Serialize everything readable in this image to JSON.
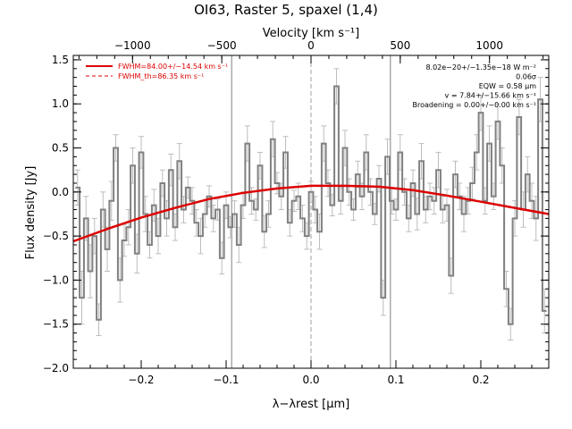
{
  "chart_data": {
    "type": "line",
    "title": "OI63, Raster 5, spaxel (1,4)",
    "xlabel": "λ−λrest [μm]",
    "ylabel": "Flux density [Jy]",
    "top_axis_label": "Velocity [km s⁻¹]",
    "xlim": [
      -0.28,
      0.28
    ],
    "ylim": [
      -2.0,
      1.55
    ],
    "x_ticks": [
      -0.2,
      -0.1,
      0.0,
      0.1,
      0.2
    ],
    "x_tick_labels": [
      "−0.2",
      "−0.1",
      "0.0",
      "0.1",
      "0.2"
    ],
    "y_ticks": [
      -2.0,
      -1.5,
      -1.0,
      -0.5,
      0.0,
      0.5,
      1.0,
      1.5
    ],
    "y_tick_labels": [
      "−2.0",
      "−1.5",
      "−1.0",
      "−0.5",
      "0.0",
      "0.5",
      "1.0",
      "1.5"
    ],
    "top_ticks": [
      -1000,
      -500,
      0,
      500,
      1000
    ],
    "top_tick_labels": [
      "−1000",
      "−500",
      "0",
      "500",
      "1000"
    ],
    "velocity_per_micron": 4757,
    "vertical_lines": [
      {
        "x": -0.0935,
        "style": "solid",
        "color": "#808080"
      },
      {
        "x": 0.0,
        "style": "dashed",
        "color": "#a0a0a0"
      },
      {
        "x": 0.0935,
        "style": "solid",
        "color": "#808080"
      }
    ],
    "legend": {
      "position": "top-left",
      "entries": [
        {
          "label": "FWHM=84.00+/−14.54 km s⁻¹",
          "style": "solid",
          "color": "#dd0000"
        },
        {
          "label": "FWHM_th=86.35 km s⁻¹",
          "style": "dashed",
          "color": "#dd0000"
        }
      ]
    },
    "annotations": {
      "position": "top-right",
      "lines": [
        "8.02e−20+/−1.35e−18 W m⁻²",
        "0.06σ",
        "EQW = 0.58 μm",
        "v = 7.84+/−15.66 km s⁻¹",
        "Broadening = 0.00+/−0.00 km s⁻¹"
      ]
    },
    "series": [
      {
        "type": "step",
        "color": "#808080",
        "x": [
          -0.275,
          -0.27,
          -0.265,
          -0.26,
          -0.255,
          -0.25,
          -0.245,
          -0.24,
          -0.235,
          -0.23,
          -0.225,
          -0.22,
          -0.215,
          -0.21,
          -0.205,
          -0.2,
          -0.195,
          -0.19,
          -0.185,
          -0.18,
          -0.175,
          -0.17,
          -0.165,
          -0.16,
          -0.155,
          -0.15,
          -0.145,
          -0.14,
          -0.135,
          -0.13,
          -0.125,
          -0.12,
          -0.115,
          -0.11,
          -0.105,
          -0.1,
          -0.095,
          -0.09,
          -0.085,
          -0.08,
          -0.075,
          -0.07,
          -0.065,
          -0.06,
          -0.055,
          -0.05,
          -0.045,
          -0.04,
          -0.035,
          -0.03,
          -0.025,
          -0.02,
          -0.015,
          -0.01,
          -0.005,
          0.0,
          0.005,
          0.01,
          0.015,
          0.02,
          0.025,
          0.03,
          0.035,
          0.04,
          0.045,
          0.05,
          0.055,
          0.06,
          0.065,
          0.07,
          0.075,
          0.08,
          0.085,
          0.09,
          0.095,
          0.1,
          0.105,
          0.11,
          0.115,
          0.12,
          0.125,
          0.13,
          0.135,
          0.14,
          0.145,
          0.15,
          0.155,
          0.16,
          0.165,
          0.17,
          0.175,
          0.18,
          0.185,
          0.19,
          0.195,
          0.2,
          0.205,
          0.21,
          0.215,
          0.22,
          0.225,
          0.23,
          0.235,
          0.24,
          0.245,
          0.25,
          0.255,
          0.26,
          0.265,
          0.27,
          0.275
        ],
        "y": [
          0.05,
          -1.2,
          -0.3,
          -0.9,
          -0.5,
          -1.45,
          -0.2,
          -0.65,
          -0.1,
          0.5,
          -1.0,
          -0.55,
          -0.4,
          0.3,
          -0.7,
          0.45,
          -0.25,
          -0.6,
          -0.15,
          -0.5,
          0.1,
          -0.3,
          0.25,
          -0.4,
          0.35,
          -0.2,
          0.05,
          -0.1,
          -0.35,
          -0.5,
          -0.25,
          -0.05,
          -0.3,
          -0.2,
          -0.75,
          -0.15,
          -0.4,
          -0.25,
          -0.6,
          -0.15,
          0.55,
          -0.1,
          -0.2,
          0.3,
          -0.45,
          -0.25,
          0.6,
          0.1,
          -0.05,
          0.45,
          -0.35,
          -0.1,
          -0.05,
          -0.3,
          -0.5,
          0.0,
          -0.2,
          -0.45,
          0.55,
          0.1,
          -0.15,
          1.2,
          -0.1,
          0.5,
          0.0,
          -0.2,
          0.2,
          -0.05,
          0.45,
          0.0,
          -0.25,
          0.15,
          -1.2,
          0.4,
          -0.1,
          -0.2,
          0.45,
          0.0,
          -0.3,
          0.1,
          -0.25,
          0.35,
          -0.2,
          -0.05,
          -0.1,
          0.25,
          -0.2,
          -0.15,
          -0.95,
          0.2,
          -0.05,
          -0.25,
          -0.1,
          0.1,
          0.45,
          0.9,
          -0.1,
          0.55,
          -0.05,
          0.8,
          0.3,
          -1.1,
          -1.5,
          -0.3,
          0.85,
          -0.2,
          0.2,
          -0.1,
          -0.3,
          1.05,
          -1.35
        ],
        "err": [
          0.2,
          0.3,
          0.25,
          0.3,
          0.2,
          0.18,
          0.2,
          0.25,
          0.22,
          0.15,
          0.25,
          0.18,
          0.2,
          0.2,
          0.22,
          0.18,
          0.2,
          0.15,
          0.18,
          0.2,
          0.15,
          0.2,
          0.18,
          0.15,
          0.2,
          0.15,
          0.12,
          0.15,
          0.15,
          0.2,
          0.15,
          0.12,
          0.15,
          0.12,
          0.18,
          0.15,
          0.12,
          0.15,
          0.2,
          0.15,
          0.2,
          0.15,
          0.12,
          0.15,
          0.18,
          0.15,
          0.2,
          0.12,
          0.15,
          0.18,
          0.15,
          0.12,
          0.15,
          0.15,
          0.15,
          0.12,
          0.15,
          0.2,
          0.2,
          0.15,
          0.12,
          0.2,
          0.15,
          0.2,
          0.15,
          0.12,
          0.15,
          0.15,
          0.2,
          0.15,
          0.12,
          0.15,
          0.2,
          0.2,
          0.15,
          0.12,
          0.2,
          0.15,
          0.15,
          0.15,
          0.18,
          0.2,
          0.15,
          0.15,
          0.15,
          0.2,
          0.15,
          0.18,
          0.2,
          0.15,
          0.15,
          0.2,
          0.15,
          0.18,
          0.2,
          0.2,
          0.15,
          0.2,
          0.15,
          0.2,
          0.2,
          0.2,
          0.18,
          0.2,
          0.2,
          0.2,
          0.2,
          0.2,
          0.25,
          0.25,
          0.25
        ]
      },
      {
        "type": "line",
        "color": "#dd0000",
        "x": [
          -0.28,
          -0.24,
          -0.2,
          -0.16,
          -0.12,
          -0.08,
          -0.04,
          0.0,
          0.04,
          0.08,
          0.12,
          0.16,
          0.2,
          0.24,
          0.28
        ],
        "y": [
          -0.56,
          -0.42,
          -0.29,
          -0.18,
          -0.08,
          -0.01,
          0.04,
          0.07,
          0.07,
          0.06,
          0.02,
          -0.04,
          -0.11,
          -0.18,
          -0.25
        ]
      }
    ]
  }
}
